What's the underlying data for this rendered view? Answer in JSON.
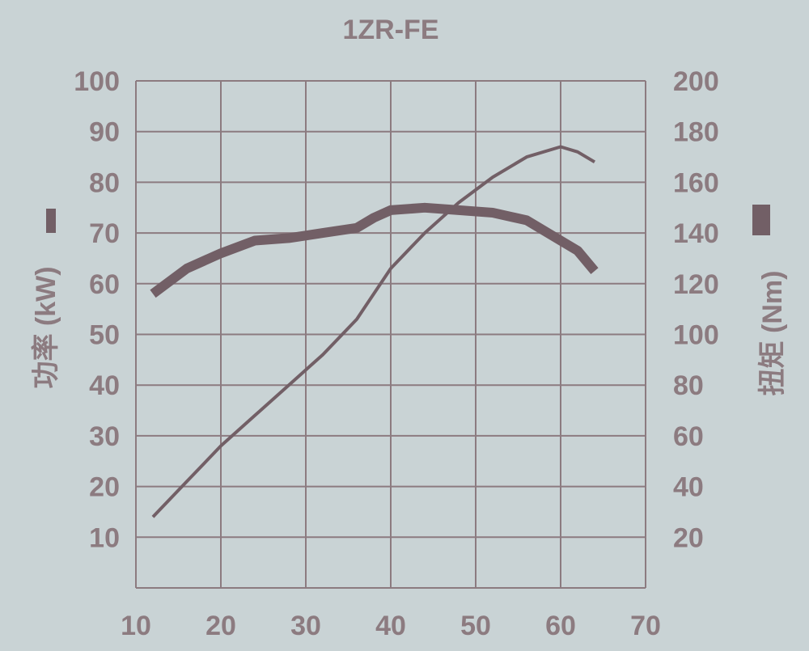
{
  "chart_data": {
    "type": "line",
    "title": "1ZR-FE",
    "xlabel": "",
    "ylabel": "功率 (kW)",
    "y2label": "扭矩 (Nm)",
    "xlim": [
      10,
      70
    ],
    "ylim": [
      0,
      100
    ],
    "y2lim": [
      0,
      200
    ],
    "x_ticks": [
      "10",
      "20",
      "30",
      "40",
      "50",
      "60",
      "70"
    ],
    "y_ticks": [
      "10",
      "20",
      "30",
      "40",
      "50",
      "60",
      "70",
      "80",
      "90",
      "100"
    ],
    "y2_ticks": [
      "20",
      "40",
      "60",
      "80",
      "100",
      "120",
      "140",
      "160",
      "180",
      "200"
    ],
    "grid": true,
    "series": [
      {
        "name": "功率 (kW)",
        "axis": "left",
        "line": "thin",
        "x": [
          12,
          16,
          20,
          24,
          28,
          32,
          36,
          40,
          44,
          48,
          52,
          56,
          60,
          62,
          64
        ],
        "y": [
          14,
          21,
          28,
          34,
          40,
          46,
          53,
          63,
          70,
          76,
          81,
          85,
          87,
          86,
          84
        ]
      },
      {
        "name": "扭矩 (Nm)",
        "axis": "right",
        "line": "thick",
        "x": [
          12,
          16,
          20,
          24,
          28,
          32,
          36,
          38,
          40,
          44,
          48,
          52,
          56,
          60,
          62,
          64
        ],
        "y": [
          116,
          126,
          132,
          137,
          138,
          140,
          142,
          146,
          149,
          150,
          149,
          148,
          145,
          137,
          133,
          125
        ]
      }
    ],
    "colors": {
      "background": "#c9d3d5",
      "grid": "#8c7b80",
      "text": "#8c7b80",
      "line": "#725f66"
    }
  }
}
